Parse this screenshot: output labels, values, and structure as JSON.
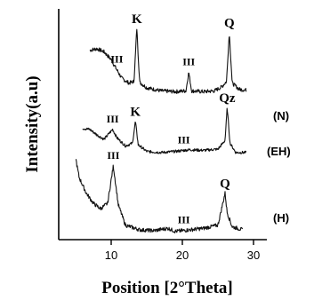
{
  "chart_data": {
    "type": "line",
    "xlabel": "Position [2°Theta]",
    "ylabel": "Intensity(a.u)",
    "xlim": [
      4,
      30
    ],
    "xticks": [
      10,
      20,
      30
    ],
    "yticks": [],
    "grid": false,
    "legend": "series labels at right end of each trace",
    "series": [
      {
        "name": "(N)",
        "points": [
          [
            7,
            0.72
          ],
          [
            8,
            0.74
          ],
          [
            9,
            0.7
          ],
          [
            10,
            0.6
          ],
          [
            10.6,
            0.5
          ],
          [
            11.5,
            0.36
          ],
          [
            12.5,
            0.3
          ],
          [
            13.2,
            0.32
          ],
          [
            13.6,
            1.0
          ],
          [
            14.0,
            0.31
          ],
          [
            15,
            0.24
          ],
          [
            17,
            0.2
          ],
          [
            19,
            0.19
          ],
          [
            20.5,
            0.2
          ],
          [
            20.9,
            0.44
          ],
          [
            21.3,
            0.2
          ],
          [
            23,
            0.19
          ],
          [
            24.5,
            0.2
          ],
          [
            25.5,
            0.25
          ],
          [
            26.2,
            0.32
          ],
          [
            26.6,
            0.95
          ],
          [
            27.0,
            0.3
          ],
          [
            28,
            0.22
          ],
          [
            29,
            0.21
          ]
        ],
        "annotations": [
          {
            "label": "III",
            "x": 10.8
          },
          {
            "label": "K",
            "x": 13.6
          },
          {
            "label": "III",
            "x": 20.9
          },
          {
            "label": "Q",
            "x": 26.6
          }
        ]
      },
      {
        "name": "(EH)",
        "points": [
          [
            6,
            0.62
          ],
          [
            7,
            0.6
          ],
          [
            8,
            0.5
          ],
          [
            9,
            0.42
          ],
          [
            10.2,
            0.6
          ],
          [
            10.8,
            0.45
          ],
          [
            12,
            0.3
          ],
          [
            13.0,
            0.35
          ],
          [
            13.4,
            0.75
          ],
          [
            13.8,
            0.32
          ],
          [
            15,
            0.2
          ],
          [
            17,
            0.18
          ],
          [
            19,
            0.2
          ],
          [
            21,
            0.23
          ],
          [
            23,
            0.22
          ],
          [
            25,
            0.24
          ],
          [
            26.0,
            0.4
          ],
          [
            26.3,
            1.0
          ],
          [
            26.7,
            0.35
          ],
          [
            27.5,
            0.18
          ],
          [
            29,
            0.18
          ]
        ],
        "annotations": [
          {
            "label": "III",
            "x": 10.2
          },
          {
            "label": "K",
            "x": 13.4
          },
          {
            "label": "III",
            "x": 20.2
          },
          {
            "label": "Qz",
            "x": 26.3
          }
        ]
      },
      {
        "name": "(H)",
        "points": [
          [
            5,
            1.0
          ],
          [
            5.5,
            0.75
          ],
          [
            6.5,
            0.55
          ],
          [
            7.5,
            0.42
          ],
          [
            8.5,
            0.35
          ],
          [
            9.5,
            0.42
          ],
          [
            10.3,
            0.9
          ],
          [
            11.0,
            0.4
          ],
          [
            12,
            0.14
          ],
          [
            14,
            0.08
          ],
          [
            16,
            0.07
          ],
          [
            18,
            0.1
          ],
          [
            19,
            0.06
          ],
          [
            21,
            0.08
          ],
          [
            23,
            0.1
          ],
          [
            25,
            0.14
          ],
          [
            26.0,
            0.55
          ],
          [
            26.3,
            0.3
          ],
          [
            27,
            0.12
          ],
          [
            28.5,
            0.08
          ]
        ],
        "annotations": [
          {
            "label": "III",
            "x": 10.3
          },
          {
            "label": "III",
            "x": 20.2
          },
          {
            "label": "Q",
            "x": 26.0
          }
        ]
      }
    ]
  }
}
